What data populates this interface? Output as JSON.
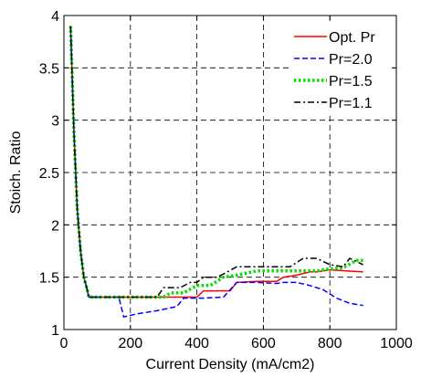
{
  "chart_data": {
    "type": "line",
    "xlabel": "Current Density (mA/cm2)",
    "ylabel": "Stoich. Ratio",
    "xlim": [
      0,
      1000
    ],
    "ylim": [
      1,
      4
    ],
    "xticks": [
      0,
      200,
      400,
      600,
      800,
      1000
    ],
    "yticks": [
      1,
      1.5,
      2,
      2.5,
      3,
      3.5,
      4
    ],
    "xtick_labels": [
      "0",
      "200",
      "400",
      "600",
      "800",
      "1000"
    ],
    "ytick_labels": [
      "1",
      "1.5",
      "2",
      "2.5",
      "3",
      "3.5",
      "4"
    ],
    "grid": true,
    "legend_position": "top-right",
    "series": [
      {
        "name": "Opt. Pr",
        "color": "#ff0000",
        "style": "solid",
        "x": [
          20,
          30,
          40,
          50,
          60,
          70,
          75,
          100,
          150,
          200,
          250,
          300,
          350,
          400,
          420,
          460,
          500,
          520,
          580,
          640,
          660,
          700,
          740,
          760,
          800,
          850,
          900
        ],
        "y": [
          3.9,
          2.9,
          2.15,
          1.75,
          1.5,
          1.38,
          1.31,
          1.31,
          1.31,
          1.31,
          1.31,
          1.31,
          1.31,
          1.31,
          1.37,
          1.37,
          1.37,
          1.45,
          1.46,
          1.46,
          1.5,
          1.52,
          1.55,
          1.55,
          1.57,
          1.56,
          1.55
        ]
      },
      {
        "name": "Pr=2.0",
        "color": "#0000ff",
        "style": "dashed",
        "x": [
          20,
          30,
          40,
          50,
          60,
          70,
          75,
          100,
          150,
          165,
          180,
          220,
          280,
          340,
          360,
          420,
          480,
          520,
          580,
          640,
          660,
          700,
          740,
          780,
          820,
          860,
          900
        ],
        "y": [
          3.9,
          2.9,
          2.15,
          1.75,
          1.5,
          1.38,
          1.31,
          1.31,
          1.31,
          1.31,
          1.12,
          1.15,
          1.18,
          1.22,
          1.3,
          1.3,
          1.31,
          1.45,
          1.45,
          1.44,
          1.45,
          1.45,
          1.42,
          1.38,
          1.3,
          1.25,
          1.23
        ]
      },
      {
        "name": "Pr=1.5",
        "color": "#00e000",
        "style": "dotted",
        "x": [
          20,
          30,
          40,
          50,
          60,
          70,
          75,
          100,
          150,
          200,
          250,
          300,
          320,
          360,
          400,
          440,
          480,
          520,
          580,
          640,
          680,
          720,
          760,
          800,
          840,
          880,
          900
        ],
        "y": [
          3.9,
          2.9,
          2.15,
          1.75,
          1.5,
          1.38,
          1.31,
          1.31,
          1.31,
          1.31,
          1.31,
          1.31,
          1.35,
          1.35,
          1.42,
          1.42,
          1.5,
          1.52,
          1.56,
          1.56,
          1.56,
          1.56,
          1.56,
          1.58,
          1.59,
          1.66,
          1.66
        ]
      },
      {
        "name": "Pr=1.1",
        "color": "#000000",
        "style": "dashdot",
        "x": [
          20,
          30,
          40,
          50,
          60,
          70,
          75,
          100,
          150,
          200,
          250,
          280,
          300,
          350,
          380,
          400,
          420,
          460,
          480,
          520,
          580,
          640,
          680,
          720,
          760,
          800,
          840,
          860,
          900
        ],
        "y": [
          3.9,
          2.9,
          2.15,
          1.75,
          1.5,
          1.38,
          1.31,
          1.31,
          1.31,
          1.31,
          1.31,
          1.31,
          1.4,
          1.4,
          1.45,
          1.45,
          1.5,
          1.5,
          1.53,
          1.6,
          1.6,
          1.6,
          1.6,
          1.68,
          1.68,
          1.62,
          1.6,
          1.68,
          1.62
        ]
      }
    ]
  }
}
